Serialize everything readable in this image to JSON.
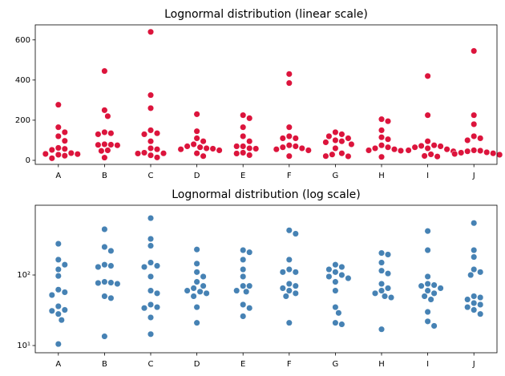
{
  "chart_data": [
    {
      "type": "swarm",
      "title": "Lognormal distribution (linear scale)",
      "log": false,
      "color": "#dc143c",
      "categories": [
        "A",
        "B",
        "C",
        "D",
        "E",
        "F",
        "G",
        "H",
        "I",
        "J"
      ],
      "values": [
        [
          277,
          165,
          140,
          120,
          97,
          62,
          57,
          52,
          36,
          32,
          31,
          28,
          23,
          10.5
        ],
        [
          445,
          250,
          220,
          140,
          135,
          130,
          80,
          78,
          77,
          75,
          50,
          47,
          13.5
        ],
        [
          640,
          325,
          260,
          150,
          135,
          130,
          95,
          60,
          55,
          38,
          35,
          34,
          25,
          14.5
        ],
        [
          230,
          145,
          110,
          95,
          80,
          70,
          65,
          60,
          58,
          55,
          50,
          35,
          21
        ],
        [
          225,
          210,
          165,
          120,
          95,
          70,
          70,
          60,
          58,
          38,
          34,
          26
        ],
        [
          430,
          385,
          165,
          120,
          110,
          110,
          75,
          70,
          65,
          60,
          55,
          50,
          21
        ],
        [
          140,
          130,
          120,
          110,
          100,
          95,
          90,
          80,
          60,
          35,
          29,
          21,
          20
        ],
        [
          205,
          195,
          150,
          115,
          105,
          75,
          65,
          60,
          55,
          50,
          48,
          17
        ],
        [
          420,
          225,
          95,
          75,
          72,
          70,
          65,
          60,
          55,
          50,
          45,
          30,
          22,
          19
        ],
        [
          545,
          225,
          180,
          120,
          110,
          100,
          50,
          48,
          45,
          40,
          38,
          35,
          32,
          28
        ]
      ],
      "ylim": [
        -20,
        675
      ],
      "yticks": [
        0,
        200,
        400,
        600
      ]
    },
    {
      "type": "swarm",
      "title": "Lognormal distribution (log scale)",
      "log": true,
      "color": "#4682b4",
      "categories": [
        "A",
        "B",
        "C",
        "D",
        "E",
        "F",
        "G",
        "H",
        "I",
        "J"
      ],
      "values": [
        [
          277,
          165,
          140,
          120,
          97,
          62,
          57,
          52,
          36,
          32,
          31,
          28,
          23,
          10.5
        ],
        [
          445,
          250,
          220,
          140,
          135,
          130,
          80,
          78,
          77,
          75,
          50,
          47,
          13.5
        ],
        [
          640,
          325,
          260,
          150,
          135,
          130,
          95,
          60,
          55,
          38,
          35,
          34,
          25,
          14.5
        ],
        [
          230,
          145,
          110,
          95,
          80,
          70,
          65,
          60,
          58,
          55,
          50,
          35,
          21
        ],
        [
          225,
          210,
          165,
          120,
          95,
          70,
          70,
          60,
          58,
          38,
          34,
          26
        ],
        [
          430,
          385,
          165,
          120,
          110,
          110,
          75,
          70,
          65,
          60,
          55,
          50,
          21
        ],
        [
          140,
          130,
          120,
          110,
          100,
          95,
          90,
          80,
          60,
          35,
          29,
          21,
          20
        ],
        [
          205,
          195,
          150,
          115,
          105,
          75,
          65,
          60,
          55,
          50,
          48,
          17
        ],
        [
          420,
          225,
          95,
          75,
          72,
          70,
          65,
          60,
          55,
          50,
          45,
          30,
          22,
          19
        ],
        [
          545,
          225,
          180,
          120,
          110,
          100,
          50,
          48,
          45,
          40,
          38,
          35,
          32,
          28
        ]
      ],
      "ylim": [
        7.9,
        975
      ],
      "yticks": [
        {
          "value": 10,
          "label": "10¹"
        },
        {
          "value": 100,
          "label": "10²"
        }
      ]
    }
  ]
}
